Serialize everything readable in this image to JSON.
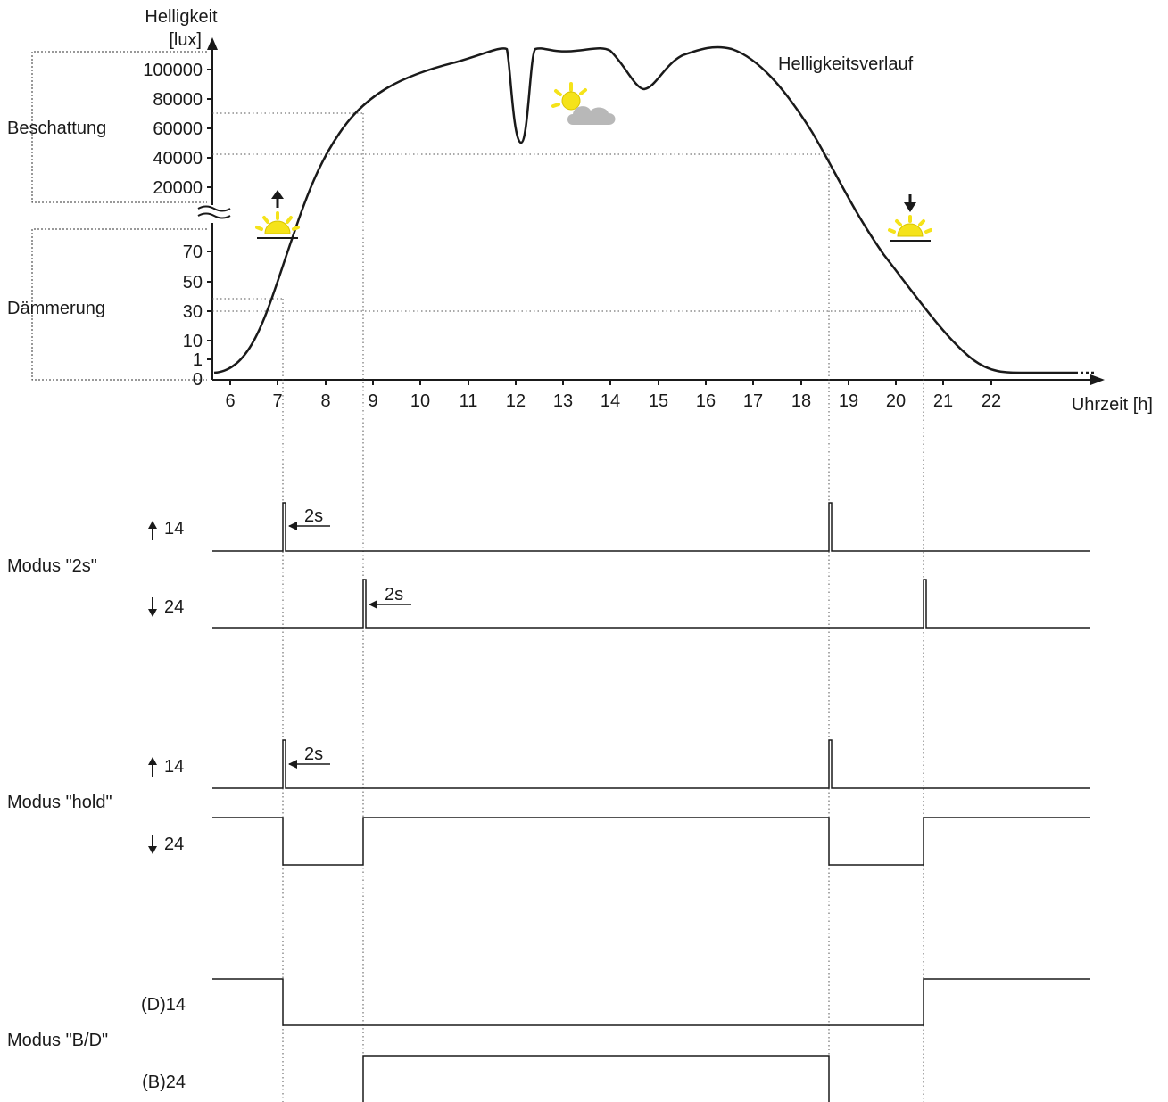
{
  "y_axis": {
    "title_line1": "Helligkeit",
    "title_line2": "[lux]",
    "upper_ticks": [
      "100000",
      "80000",
      "60000",
      "40000",
      "20000"
    ],
    "lower_ticks": [
      "70",
      "50",
      "30",
      "10",
      "1",
      "0"
    ]
  },
  "x_axis": {
    "title": "Uhrzeit [h]",
    "ticks": [
      "6",
      "7",
      "8",
      "9",
      "10",
      "11",
      "12",
      "13",
      "14",
      "15",
      "16",
      "17",
      "18",
      "19",
      "20",
      "21",
      "22"
    ]
  },
  "range_labels": {
    "shading": "Beschattung",
    "twilight": "Dämmerung"
  },
  "curve_label": "Helligkeitsverlauf",
  "thresholds": {
    "shading_on_lux": 70000,
    "shading_off_lux": 40000,
    "twilight_on_lux": 40,
    "twilight_off_lux": 30
  },
  "events_h": {
    "sunrise_switch": 7.1,
    "shade_on": 8.8,
    "shade_off": 18.6,
    "sunset_switch": 20.6
  },
  "modes": [
    {
      "name": "Modus \"2s\"",
      "channels": [
        {
          "label": "14",
          "arrow": "up-arrow-icon",
          "pulse_label": "2s"
        },
        {
          "label": "24",
          "arrow": "down-arrow-icon",
          "pulse_label": "2s"
        }
      ]
    },
    {
      "name": "Modus \"hold\"",
      "channels": [
        {
          "label": "14",
          "arrow": "up-arrow-icon",
          "pulse_label": "2s"
        },
        {
          "label": "24",
          "arrow": "down-arrow-icon"
        }
      ]
    },
    {
      "name": "Modus \"B/D\"",
      "channels": [
        {
          "label": "(D)14"
        },
        {
          "label": "(B)24"
        }
      ]
    }
  ],
  "colors": {
    "sun": "#f5e31a",
    "sun_stroke": "#d9c400",
    "cloud": "#b8b8b8",
    "line": "#1a1a1a"
  },
  "icons": [
    "sunrise-icon",
    "sunset-icon",
    "sun-cloud-icon",
    "up-arrow-icon",
    "down-arrow-icon"
  ]
}
